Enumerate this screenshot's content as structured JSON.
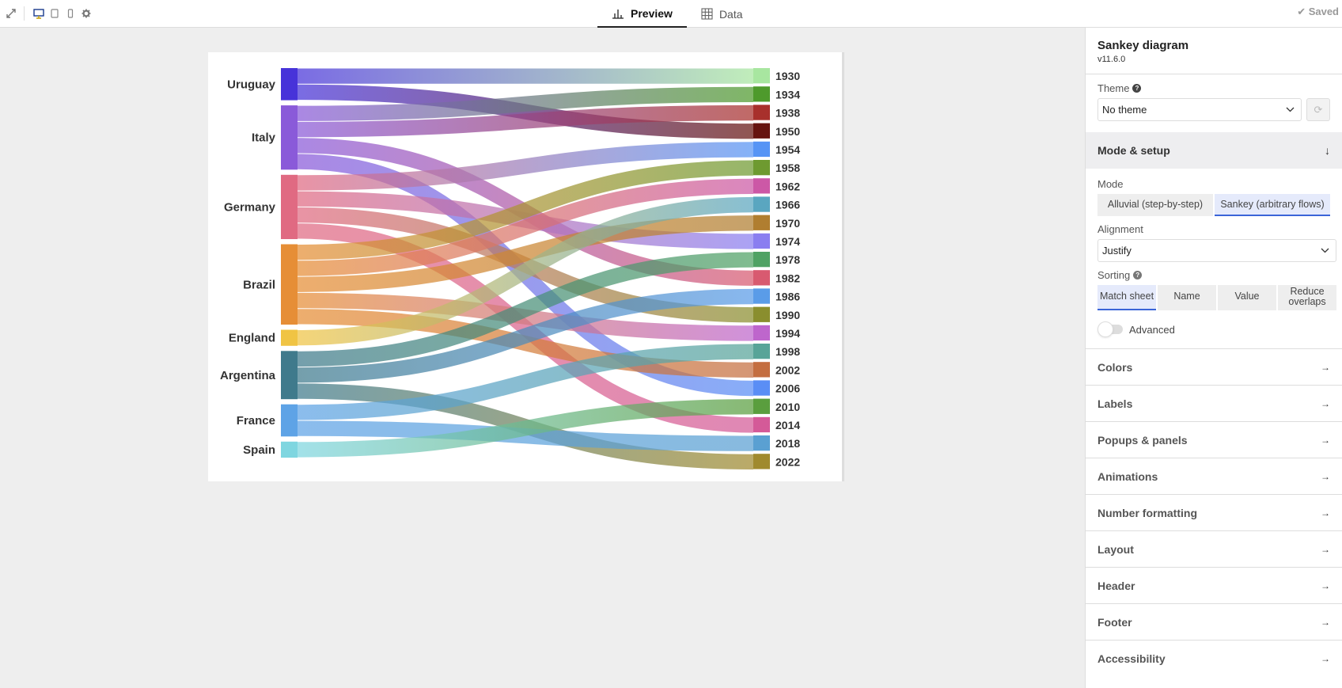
{
  "topbar": {
    "left_icons": [
      "expand-icon",
      "desktop-icon",
      "tablet-icon",
      "mobile-icon",
      "gear-icon"
    ],
    "tabs": [
      {
        "label": "Preview",
        "icon": "bar-chart-icon",
        "active": true
      },
      {
        "label": "Data",
        "icon": "table-grid-icon",
        "active": false
      }
    ],
    "status": "✔ Saved"
  },
  "sidebar": {
    "title": "Sankey diagram",
    "version": "v11.6.0",
    "theme": {
      "label": "Theme",
      "value": "No theme"
    },
    "mode_setup": {
      "heading": "Mode & setup",
      "heading_icon": "↓",
      "mode": {
        "label": "Mode",
        "options": [
          "Alluvial (step-by-step)",
          "Sankey (arbitrary flows)"
        ],
        "selected": "Sankey (arbitrary flows)"
      },
      "alignment": {
        "label": "Alignment",
        "value": "Justify"
      },
      "sorting": {
        "label": "Sorting",
        "options": [
          "Match sheet",
          "Name",
          "Value",
          "Reduce overlaps"
        ],
        "selected": "Match sheet"
      },
      "advanced": {
        "label": "Advanced",
        "enabled": false
      }
    },
    "sections": [
      "Colors",
      "Labels",
      "Popups & panels",
      "Animations",
      "Number formatting",
      "Layout",
      "Header",
      "Footer",
      "Accessibility"
    ],
    "section_arrow": "→"
  },
  "chart_data": {
    "type": "sankey",
    "title": "",
    "sources": [
      {
        "name": "Uruguay",
        "color": "#4733d9"
      },
      {
        "name": "Italy",
        "color": "#8a5ad9"
      },
      {
        "name": "Germany",
        "color": "#e06a82"
      },
      {
        "name": "Brazil",
        "color": "#e68e36"
      },
      {
        "name": "England",
        "color": "#f0c444"
      },
      {
        "name": "Argentina",
        "color": "#3f7a8c"
      },
      {
        "name": "France",
        "color": "#5ea3e6"
      },
      {
        "name": "Spain",
        "color": "#7fd6e0"
      }
    ],
    "targets": [
      {
        "name": "1930",
        "color": "#a8e6a0"
      },
      {
        "name": "1934",
        "color": "#4e9a2c"
      },
      {
        "name": "1938",
        "color": "#a8302c"
      },
      {
        "name": "1950",
        "color": "#661410"
      },
      {
        "name": "1954",
        "color": "#5694f5"
      },
      {
        "name": "1958",
        "color": "#6e9a30"
      },
      {
        "name": "1962",
        "color": "#cc58a6"
      },
      {
        "name": "1966",
        "color": "#5aa6c0"
      },
      {
        "name": "1970",
        "color": "#b07e30"
      },
      {
        "name": "1974",
        "color": "#8a7ef0"
      },
      {
        "name": "1978",
        "color": "#50a264"
      },
      {
        "name": "1982",
        "color": "#d85a70"
      },
      {
        "name": "1986",
        "color": "#5a9ce8"
      },
      {
        "name": "1990",
        "color": "#8a8e2e"
      },
      {
        "name": "1994",
        "color": "#be66cc"
      },
      {
        "name": "1998",
        "color": "#58a498"
      },
      {
        "name": "2002",
        "color": "#c46e40"
      },
      {
        "name": "2006",
        "color": "#5a8ef5"
      },
      {
        "name": "2010",
        "color": "#5a9e3e"
      },
      {
        "name": "2014",
        "color": "#d45a98"
      },
      {
        "name": "2018",
        "color": "#5aa0d2"
      },
      {
        "name": "2022",
        "color": "#a08a2e"
      }
    ],
    "links": [
      {
        "source": "Uruguay",
        "target": "1930",
        "value": 1
      },
      {
        "source": "Uruguay",
        "target": "1950",
        "value": 1
      },
      {
        "source": "Italy",
        "target": "1934",
        "value": 1
      },
      {
        "source": "Italy",
        "target": "1938",
        "value": 1
      },
      {
        "source": "Italy",
        "target": "1982",
        "value": 1
      },
      {
        "source": "Italy",
        "target": "2006",
        "value": 1
      },
      {
        "source": "Germany",
        "target": "1954",
        "value": 1
      },
      {
        "source": "Germany",
        "target": "1974",
        "value": 1
      },
      {
        "source": "Germany",
        "target": "1990",
        "value": 1
      },
      {
        "source": "Germany",
        "target": "2014",
        "value": 1
      },
      {
        "source": "Brazil",
        "target": "1958",
        "value": 1
      },
      {
        "source": "Brazil",
        "target": "1962",
        "value": 1
      },
      {
        "source": "Brazil",
        "target": "1970",
        "value": 1
      },
      {
        "source": "Brazil",
        "target": "1994",
        "value": 1
      },
      {
        "source": "Brazil",
        "target": "2002",
        "value": 1
      },
      {
        "source": "England",
        "target": "1966",
        "value": 1
      },
      {
        "source": "Argentina",
        "target": "1978",
        "value": 1
      },
      {
        "source": "Argentina",
        "target": "1986",
        "value": 1
      },
      {
        "source": "Argentina",
        "target": "2022",
        "value": 1
      },
      {
        "source": "France",
        "target": "1998",
        "value": 1
      },
      {
        "source": "France",
        "target": "2018",
        "value": 1
      },
      {
        "source": "Spain",
        "target": "2010",
        "value": 1
      }
    ]
  }
}
